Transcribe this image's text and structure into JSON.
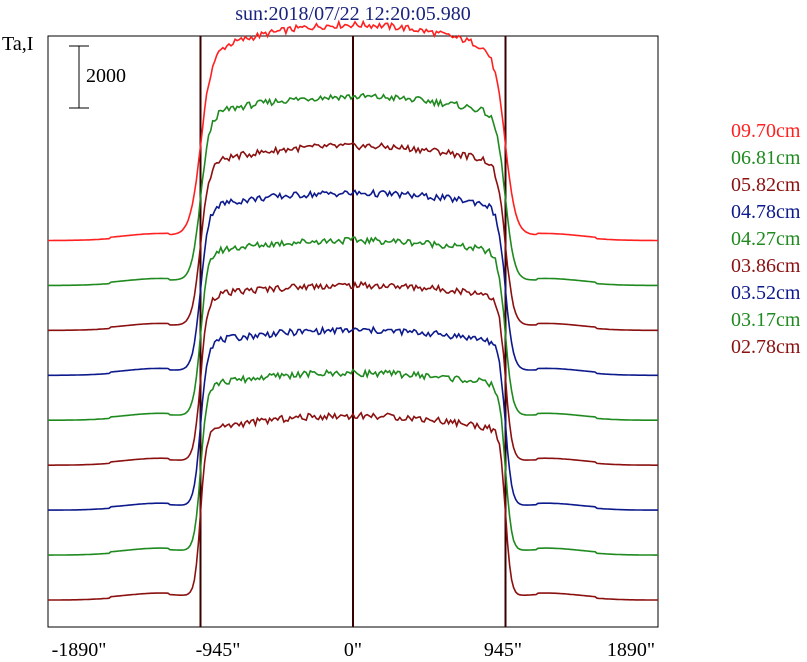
{
  "chart_data": {
    "type": "line",
    "title": "sun:2018/07/22 12:20:05.980",
    "ylabel": "Ta,I",
    "xlim": [
      -1890,
      1890
    ],
    "x_ticks": [
      -1890,
      -945,
      0,
      945,
      1890
    ],
    "x_tick_labels": [
      "-1890\"",
      "-945\"",
      "0\"",
      "945\"",
      "1890\""
    ],
    "vertical_lines": [
      -945,
      0,
      945
    ],
    "scale_bar": {
      "label": "2000",
      "value": 2000
    },
    "ylim": [
      -1200,
      25100
    ],
    "offset_step": 2000,
    "disk_radius": 945,
    "legend_placement": "right",
    "series": [
      {
        "name": "09.70cm",
        "color": "#ff2020",
        "baseline": 16000,
        "disk_level": 7300,
        "peak": 9600,
        "limb_width": 95
      },
      {
        "name": "06.81cm",
        "color": "#1f8a1f",
        "baseline": 14000,
        "disk_level": 6900,
        "peak": 8400,
        "limb_width": 80
      },
      {
        "name": "05.82cm",
        "color": "#8b1010",
        "baseline": 12000,
        "disk_level": 6800,
        "peak": 8200,
        "limb_width": 75
      },
      {
        "name": "04.78cm",
        "color": "#0d1a8c",
        "baseline": 10000,
        "disk_level": 7000,
        "peak": 8100,
        "limb_width": 70
      },
      {
        "name": "04.27cm",
        "color": "#1f8a1f",
        "baseline": 8000,
        "disk_level": 7000,
        "peak": 8000,
        "limb_width": 65
      },
      {
        "name": "03.86cm",
        "color": "#8b1010",
        "baseline": 6000,
        "disk_level": 7100,
        "peak": 8000,
        "limb_width": 60
      },
      {
        "name": "03.52cm",
        "color": "#0d1a8c",
        "baseline": 4000,
        "disk_level": 7000,
        "peak": 8000,
        "limb_width": 58
      },
      {
        "name": "03.17cm",
        "color": "#1f8a1f",
        "baseline": 2000,
        "disk_level": 7100,
        "peak": 8100,
        "limb_width": 55
      },
      {
        "name": "02.78cm",
        "color": "#8b1010",
        "baseline": 0,
        "disk_level": 7000,
        "peak": 8200,
        "limb_width": 50
      }
    ]
  }
}
